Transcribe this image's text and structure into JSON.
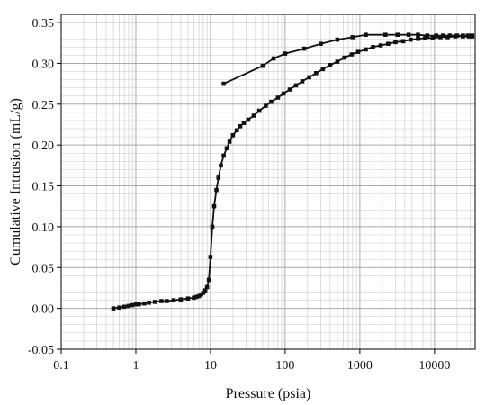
{
  "chart_data": {
    "type": "scatter",
    "x_scale": "log",
    "xlabel": "Pressure (psia)",
    "ylabel": "Cumulative Intrusion (mL/g)",
    "xlim": [
      0.1,
      35000
    ],
    "ylim": [
      -0.05,
      0.36
    ],
    "x_ticks": [
      0.1,
      1,
      10,
      100,
      1000,
      10000
    ],
    "x_tick_labels": [
      "0.1",
      "1",
      "10",
      "100",
      "1000",
      "10000"
    ],
    "y_ticks": [
      -0.05,
      0,
      0.05,
      0.1,
      0.15,
      0.2,
      0.25,
      0.3,
      0.35
    ],
    "y_tick_labels": [
      "-0.05",
      "0.00",
      "0.05",
      "0.10",
      "0.15",
      "0.20",
      "0.25",
      "0.30",
      "0.35"
    ],
    "grid": true,
    "colors": {
      "series": "#111111",
      "grid": "#c8c8c8",
      "frame": "#000000"
    },
    "series": [
      {
        "points": [
          [
            0.5,
            0.0
          ],
          [
            0.6,
            0.001
          ],
          [
            0.7,
            0.002
          ],
          [
            0.8,
            0.003
          ],
          [
            0.9,
            0.004
          ],
          [
            1.0,
            0.005
          ],
          [
            1.1,
            0.005
          ],
          [
            1.3,
            0.006
          ],
          [
            1.5,
            0.007
          ],
          [
            1.8,
            0.008
          ],
          [
            2.2,
            0.009
          ],
          [
            2.6,
            0.009
          ],
          [
            3.2,
            0.01
          ],
          [
            4.0,
            0.011
          ],
          [
            5.0,
            0.012
          ],
          [
            6.0,
            0.013
          ],
          [
            6.5,
            0.014
          ],
          [
            7.0,
            0.015
          ],
          [
            7.5,
            0.017
          ],
          [
            8.0,
            0.019
          ],
          [
            8.5,
            0.022
          ],
          [
            9.0,
            0.026
          ],
          [
            9.5,
            0.035
          ],
          [
            10.0,
            0.063
          ],
          [
            10.6,
            0.1
          ],
          [
            11.2,
            0.125
          ],
          [
            12.0,
            0.145
          ],
          [
            12.8,
            0.16
          ],
          [
            13.8,
            0.175
          ],
          [
            15.0,
            0.187
          ],
          [
            16.5,
            0.196
          ],
          [
            18.0,
            0.204
          ],
          [
            20.0,
            0.212
          ],
          [
            22.5,
            0.218
          ],
          [
            25.0,
            0.223
          ],
          [
            28.0,
            0.227
          ],
          [
            32.0,
            0.231
          ],
          [
            38.0,
            0.236
          ],
          [
            45.0,
            0.242
          ],
          [
            55.0,
            0.248
          ],
          [
            65.0,
            0.253
          ],
          [
            80.0,
            0.258
          ],
          [
            95.0,
            0.263
          ],
          [
            115.0,
            0.268
          ],
          [
            140.0,
            0.273
          ],
          [
            170.0,
            0.278
          ],
          [
            210.0,
            0.283
          ],
          [
            260.0,
            0.288
          ],
          [
            320.0,
            0.293
          ],
          [
            400.0,
            0.298
          ],
          [
            500.0,
            0.302
          ],
          [
            620.0,
            0.307
          ],
          [
            780.0,
            0.311
          ],
          [
            950.0,
            0.314
          ],
          [
            1200.0,
            0.317
          ],
          [
            1500.0,
            0.32
          ],
          [
            1900.0,
            0.322
          ],
          [
            2400.0,
            0.324
          ],
          [
            3000.0,
            0.326
          ],
          [
            3800.0,
            0.327
          ],
          [
            4800.0,
            0.329
          ],
          [
            6000.0,
            0.33
          ],
          [
            7500.0,
            0.331
          ],
          [
            9500.0,
            0.331
          ],
          [
            12000.0,
            0.332
          ],
          [
            15000.0,
            0.332
          ],
          [
            19000.0,
            0.333
          ],
          [
            24000.0,
            0.333
          ],
          [
            29000.0,
            0.333
          ],
          [
            32000.0,
            0.333
          ]
        ]
      },
      {
        "points": [
          [
            32000.0,
            0.334
          ],
          [
            28000.0,
            0.334
          ],
          [
            24000.0,
            0.334
          ],
          [
            20000.0,
            0.334
          ],
          [
            16000.0,
            0.334
          ],
          [
            13000.0,
            0.334
          ],
          [
            10500.0,
            0.334
          ],
          [
            8000.0,
            0.334
          ],
          [
            6000.0,
            0.335
          ],
          [
            4500.0,
            0.335
          ],
          [
            3200.0,
            0.335
          ],
          [
            2200.0,
            0.335
          ],
          [
            1200.0,
            0.335
          ],
          [
            800.0,
            0.332
          ],
          [
            500.0,
            0.329
          ],
          [
            300.0,
            0.324
          ],
          [
            180.0,
            0.318
          ],
          [
            100.0,
            0.312
          ],
          [
            70.0,
            0.306
          ],
          [
            50.0,
            0.297
          ],
          [
            15.0,
            0.275
          ]
        ]
      }
    ]
  }
}
